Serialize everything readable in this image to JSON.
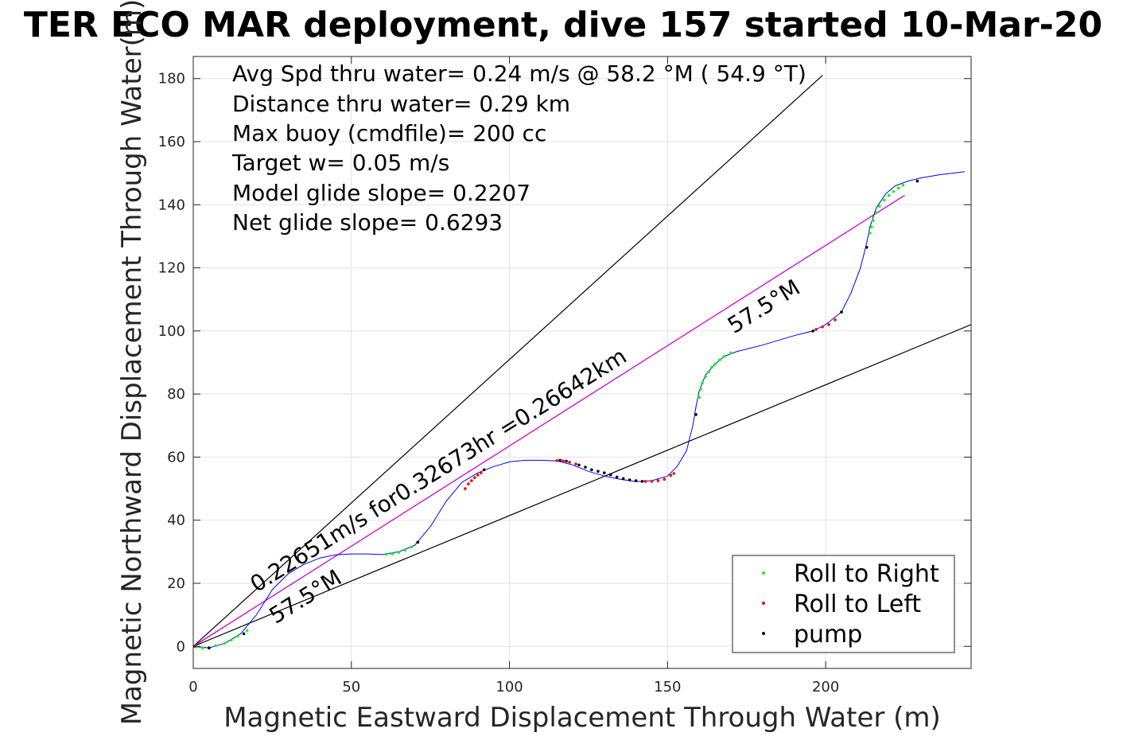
{
  "chart_data": {
    "type": "line",
    "title": "TER ECO MAR deployment, dive 157 started 10-Mar-20",
    "xlabel": "Magnetic Eastward Displacement Through Water (m)",
    "ylabel": "Magnetic Northward Displacement Through Water(m)",
    "xlim": [
      0,
      246
    ],
    "ylim": [
      -7,
      187
    ],
    "xticks": [
      0,
      50,
      100,
      150,
      200
    ],
    "xtick_labels": [
      "0",
      "50",
      "100",
      "150",
      "200"
    ],
    "yticks": [
      0,
      20,
      40,
      60,
      80,
      100,
      120,
      140,
      160,
      180
    ],
    "ytick_labels": [
      "0",
      "20",
      "40",
      "60",
      "80",
      "100",
      "120",
      "140",
      "160",
      "180"
    ],
    "grid": true,
    "legend_position": "bottom-right",
    "text_block": [
      "Avg Spd thru water=  0.24 m/s @  58.2 °M ( 54.9 °T)",
      "Distance thru water=  0.29 km",
      "Max buoy (cmdfile)= 200 cc",
      "Target w= 0.05 m/s",
      "Model glide slope= 0.2207",
      "Net glide slope= 0.6293"
    ],
    "annotations": [
      {
        "text": "0.22651m/s for0.32673hr =0.26642km",
        "x": 20,
        "y": 17,
        "angle_deg": 32
      },
      {
        "text": "57.5°M",
        "x": 171,
        "y": 99,
        "angle_deg": 32
      },
      {
        "text": "57.5°M",
        "x": 26,
        "y": 7,
        "angle_deg": 32
      }
    ],
    "track": {
      "name": "track",
      "color": "#0000ff",
      "x": [
        0,
        5,
        10,
        15,
        20,
        25,
        30,
        35,
        40,
        45,
        50,
        55,
        60,
        65,
        70,
        75,
        80,
        85,
        90,
        95,
        100,
        105,
        110,
        115,
        120,
        125,
        130,
        135,
        140,
        145,
        150,
        153,
        156,
        158,
        159,
        160,
        162,
        165,
        168,
        172,
        180,
        190,
        196,
        200,
        205,
        208,
        211,
        213,
        214,
        216,
        219,
        222,
        226,
        230,
        236,
        244
      ],
      "y": [
        0,
        -0.5,
        1,
        4,
        10,
        18,
        23,
        26,
        28,
        29,
        29.3,
        29.3,
        29.1,
        30,
        32,
        38,
        46,
        52,
        55,
        57,
        58.5,
        59,
        59,
        58.8,
        57.5,
        55.5,
        54,
        53,
        52.2,
        52.5,
        54,
        57,
        62,
        70,
        76,
        81,
        86,
        89.5,
        92,
        93.5,
        95.5,
        98.5,
        100,
        102,
        106,
        112,
        120,
        128,
        133,
        139,
        143.5,
        146,
        147.5,
        148.5,
        149.5,
        150.5
      ]
    },
    "model_line": {
      "name": "model",
      "color": "#cc00cc",
      "x": [
        0,
        225
      ],
      "y": [
        0,
        143
      ]
    },
    "bounds_lines": [
      {
        "color": "#000000",
        "x": [
          0,
          199
        ],
        "y": [
          0,
          181
        ]
      },
      {
        "color": "#000000",
        "x": [
          0,
          246
        ],
        "y": [
          0,
          102
        ]
      }
    ],
    "series": [
      {
        "name": "Roll to Right",
        "color": "#00ff00",
        "points": [
          [
            1,
            -0.2
          ],
          [
            3,
            -0.5
          ],
          [
            7,
            0.2
          ],
          [
            10,
            1
          ],
          [
            12,
            2
          ],
          [
            14,
            3.2
          ],
          [
            17,
            5
          ],
          [
            61,
            29.2
          ],
          [
            63,
            29.3
          ],
          [
            65,
            29.8
          ],
          [
            67,
            30.5
          ],
          [
            69,
            31.5
          ],
          [
            71,
            33
          ],
          [
            160,
            79
          ],
          [
            160.5,
            81.5
          ],
          [
            161,
            83.5
          ],
          [
            162,
            85.5
          ],
          [
            163,
            87
          ],
          [
            164,
            88.5
          ],
          [
            165,
            89.5
          ],
          [
            166.5,
            90.8
          ],
          [
            168,
            92
          ],
          [
            170,
            93
          ],
          [
            214,
            131
          ],
          [
            214.5,
            133
          ],
          [
            215,
            135
          ],
          [
            216,
            137.5
          ],
          [
            217,
            139.5
          ],
          [
            218.5,
            141.5
          ],
          [
            220,
            143
          ],
          [
            221.5,
            144.2
          ],
          [
            223,
            145.3
          ],
          [
            224.5,
            146.2
          ]
        ]
      },
      {
        "name": "Roll to Left",
        "color": "#ff0000",
        "points": [
          [
            0.5,
            0.1
          ],
          [
            86,
            50
          ],
          [
            87,
            51.5
          ],
          [
            88,
            52.5
          ],
          [
            89,
            53.5
          ],
          [
            90,
            54.3
          ],
          [
            91,
            55
          ],
          [
            115,
            58.9
          ],
          [
            117,
            58.8
          ],
          [
            119,
            58.4
          ],
          [
            121,
            57.8
          ],
          [
            143,
            52.3
          ],
          [
            145,
            52.3
          ],
          [
            147,
            52.5
          ],
          [
            149,
            53
          ],
          [
            151,
            54.2
          ],
          [
            152,
            54.8
          ],
          [
            197,
            100.5
          ],
          [
            199,
            101.3
          ],
          [
            201,
            102
          ],
          [
            203,
            103.5
          ]
        ]
      },
      {
        "name": "pump",
        "color": "#000000",
        "points": [
          [
            0,
            0
          ],
          [
            5,
            -0.5
          ],
          [
            16,
            4
          ],
          [
            71,
            33
          ],
          [
            92,
            56
          ],
          [
            116,
            59
          ],
          [
            118,
            58.7
          ],
          [
            122,
            57.5
          ],
          [
            124,
            56.8
          ],
          [
            126,
            56
          ],
          [
            128,
            55.5
          ],
          [
            130,
            55
          ],
          [
            132,
            54.4
          ],
          [
            134,
            53.7
          ],
          [
            136,
            53.2
          ],
          [
            138,
            52.8
          ],
          [
            140,
            52.5
          ],
          [
            142,
            52.3
          ],
          [
            159,
            73.5
          ],
          [
            196,
            100
          ],
          [
            205,
            106
          ],
          [
            213,
            126.5
          ],
          [
            229,
            147.5
          ]
        ]
      }
    ]
  }
}
